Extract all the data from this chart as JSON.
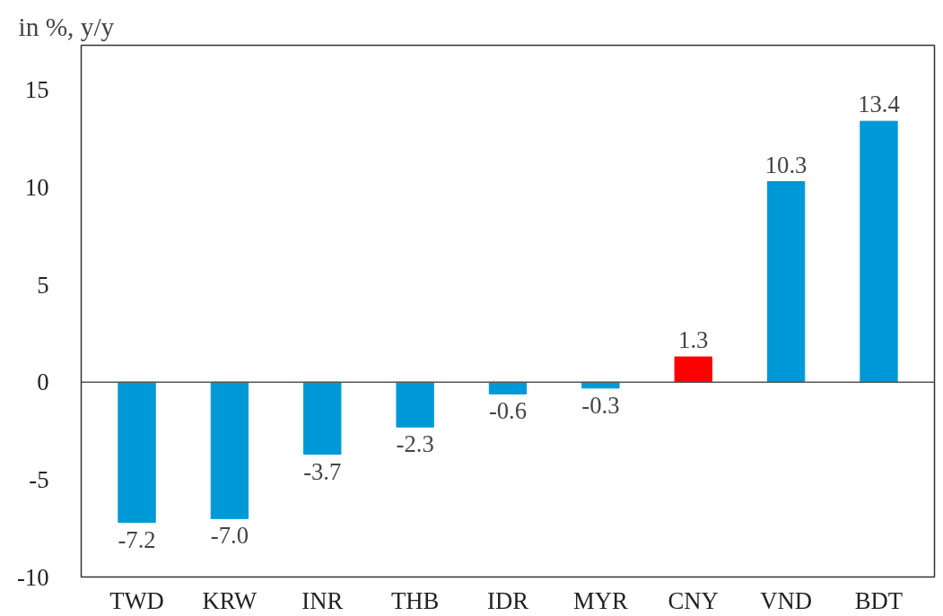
{
  "chart_data": {
    "type": "bar",
    "ylabel": "in %, y/y",
    "categories": [
      "TWD",
      "KRW",
      "INR",
      "THB",
      "IDR",
      "MYR",
      "CNY",
      "VND",
      "BDT"
    ],
    "values": [
      -7.2,
      -7.0,
      -3.7,
      -2.3,
      -0.6,
      -0.3,
      1.3,
      10.3,
      13.4
    ],
    "colors": [
      "#0099d8",
      "#0099d8",
      "#0099d8",
      "#0099d8",
      "#0099d8",
      "#0099d8",
      "#ff0000",
      "#0099d8",
      "#0099d8"
    ],
    "ylim": [
      -10,
      17.3
    ],
    "yticks": [
      -10,
      -5,
      0,
      5,
      10,
      15
    ],
    "ref_lines": [
      {
        "axis": "y",
        "value": 0,
        "color": "#555555"
      }
    ],
    "value_labels": [
      "-7.2",
      "-7.0",
      "-3.7",
      "-2.3",
      "-0.6",
      "-0.3",
      "1.3",
      "10.3",
      "13.4"
    ],
    "grid": false
  }
}
